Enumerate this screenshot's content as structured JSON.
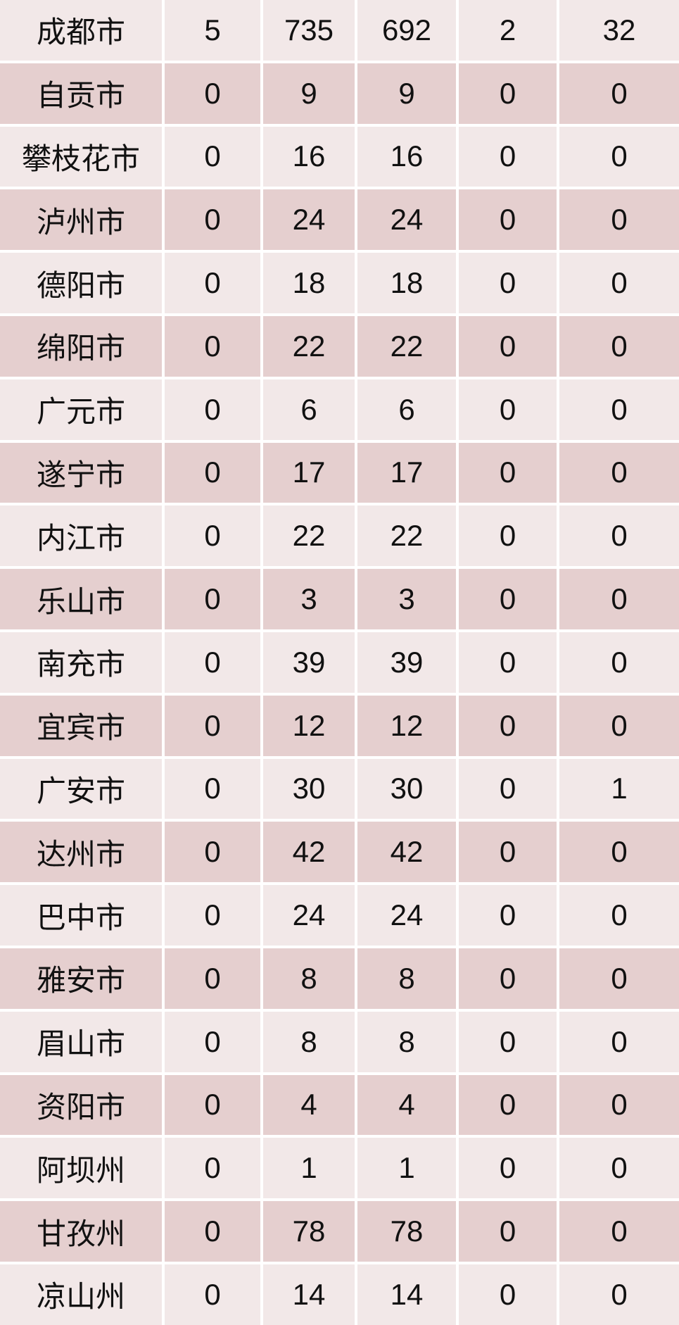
{
  "chart_data": {
    "type": "table",
    "title": "",
    "rows": [
      {
        "city": "成都市",
        "values": [
          5,
          735,
          692,
          2,
          32
        ]
      },
      {
        "city": "自贡市",
        "values": [
          0,
          9,
          9,
          0,
          0
        ]
      },
      {
        "city": "攀枝花市",
        "values": [
          0,
          16,
          16,
          0,
          0
        ]
      },
      {
        "city": "泸州市",
        "values": [
          0,
          24,
          24,
          0,
          0
        ]
      },
      {
        "city": "德阳市",
        "values": [
          0,
          18,
          18,
          0,
          0
        ]
      },
      {
        "city": "绵阳市",
        "values": [
          0,
          22,
          22,
          0,
          0
        ]
      },
      {
        "city": "广元市",
        "values": [
          0,
          6,
          6,
          0,
          0
        ]
      },
      {
        "city": "遂宁市",
        "values": [
          0,
          17,
          17,
          0,
          0
        ]
      },
      {
        "city": "内江市",
        "values": [
          0,
          22,
          22,
          0,
          0
        ]
      },
      {
        "city": "乐山市",
        "values": [
          0,
          3,
          3,
          0,
          0
        ]
      },
      {
        "city": "南充市",
        "values": [
          0,
          39,
          39,
          0,
          0
        ]
      },
      {
        "city": "宜宾市",
        "values": [
          0,
          12,
          12,
          0,
          0
        ]
      },
      {
        "city": "广安市",
        "values": [
          0,
          30,
          30,
          0,
          1
        ]
      },
      {
        "city": "达州市",
        "values": [
          0,
          42,
          42,
          0,
          0
        ]
      },
      {
        "city": "巴中市",
        "values": [
          0,
          24,
          24,
          0,
          0
        ]
      },
      {
        "city": "雅安市",
        "values": [
          0,
          8,
          8,
          0,
          0
        ]
      },
      {
        "city": "眉山市",
        "values": [
          0,
          8,
          8,
          0,
          0
        ]
      },
      {
        "city": "资阳市",
        "values": [
          0,
          4,
          4,
          0,
          0
        ]
      },
      {
        "city": "阿坝州",
        "values": [
          0,
          1,
          1,
          0,
          0
        ]
      },
      {
        "city": "甘孜州",
        "values": [
          0,
          78,
          78,
          0,
          0
        ]
      },
      {
        "city": "凉山州",
        "values": [
          0,
          14,
          14,
          0,
          0
        ]
      }
    ],
    "layout": {
      "grid": "off",
      "headers_visible": false,
      "row_striping": "alternating"
    }
  },
  "styles": {
    "row_light": "#f2e8e8",
    "row_dark": "#e5cfcf",
    "gap": "#ffffff",
    "text": "#111111"
  }
}
